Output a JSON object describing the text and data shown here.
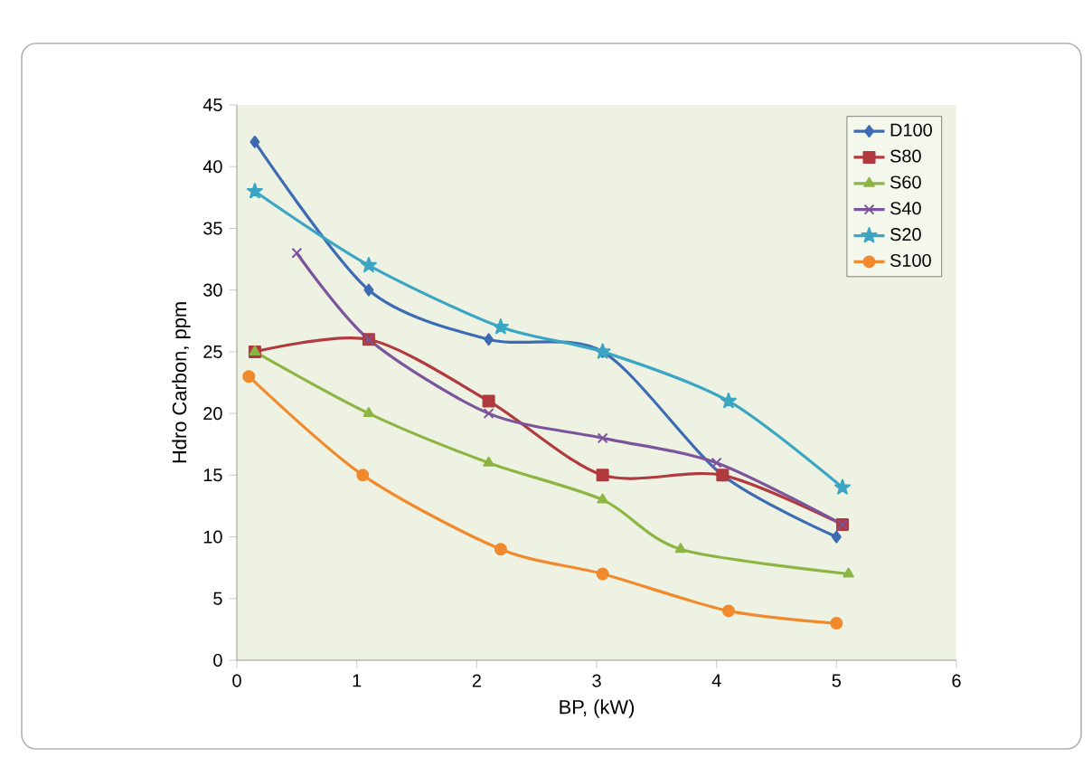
{
  "chart_data": {
    "type": "line",
    "xlabel": "BP, (kW)",
    "ylabel": "Hdro Carbon, ppm",
    "xlim": [
      0,
      6
    ],
    "xticks": [
      0,
      1,
      2,
      3,
      4,
      5,
      6
    ],
    "ylim": [
      0,
      45
    ],
    "yticks": [
      0,
      5,
      10,
      15,
      20,
      25,
      30,
      35,
      40,
      45
    ],
    "grid": false,
    "legend": "top right",
    "line_style": "solid",
    "series": [
      {
        "name": "D100",
        "color": "#3d6bb3",
        "marker": "diamond",
        "x": [
          0.15,
          1.1,
          2.1,
          3.05,
          4.05,
          5.0
        ],
        "values": [
          42,
          30,
          26,
          25,
          15,
          10
        ]
      },
      {
        "name": "S80",
        "color": "#b03a3e",
        "marker": "square",
        "x": [
          0.15,
          1.1,
          2.1,
          3.05,
          4.05,
          5.05
        ],
        "values": [
          25,
          26,
          21,
          15,
          15,
          11
        ]
      },
      {
        "name": "S60",
        "color": "#8db544",
        "marker": "triangle",
        "x": [
          0.15,
          1.1,
          2.1,
          3.05,
          3.7,
          5.1
        ],
        "values": [
          25,
          20,
          16,
          13,
          9,
          7
        ]
      },
      {
        "name": "S40",
        "color": "#7b559c",
        "marker": "cross",
        "x": [
          0.5,
          1.1,
          2.1,
          3.05,
          4.0,
          5.05
        ],
        "values": [
          33,
          26,
          20,
          18,
          16,
          11
        ]
      },
      {
        "name": "S20",
        "color": "#3ba6c4",
        "marker": "star",
        "x": [
          0.15,
          1.1,
          2.2,
          3.05,
          4.1,
          5.05
        ],
        "values": [
          38,
          32,
          27,
          25,
          21,
          14
        ]
      },
      {
        "name": "S100",
        "color": "#f08a2c",
        "marker": "circle",
        "x": [
          0.1,
          1.05,
          2.2,
          3.05,
          4.1,
          5.0
        ],
        "values": [
          23,
          15,
          9,
          7,
          4,
          3
        ]
      }
    ]
  }
}
